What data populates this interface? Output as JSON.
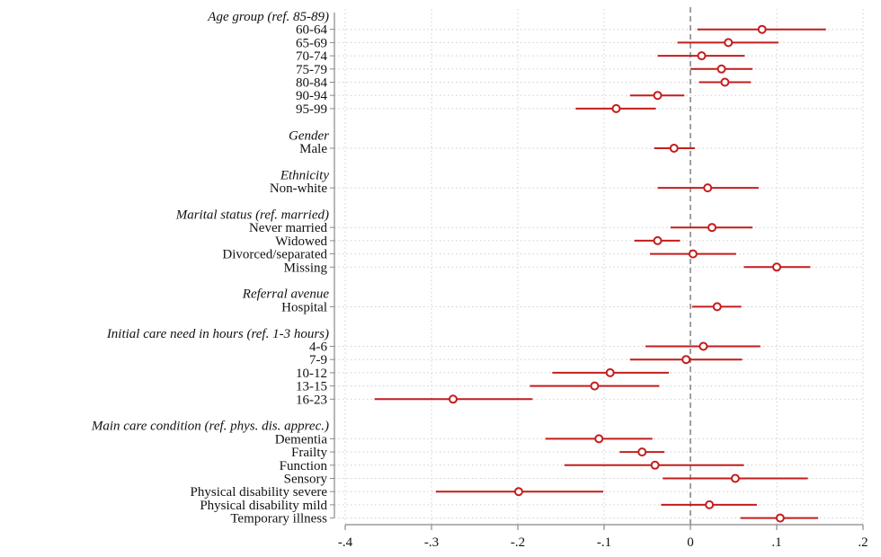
{
  "chart_data": {
    "type": "scatter",
    "subtype": "coefficient-plot",
    "orientation": "horizontal",
    "xlim": [
      -0.4,
      0.2
    ],
    "x_ticks": [
      -0.4,
      -0.3,
      -0.2,
      -0.1,
      0,
      0.1,
      0.2
    ],
    "x_tick_labels": [
      "-.4",
      "-.3",
      "-.2",
      "-.1",
      "0",
      ".1",
      ".2"
    ],
    "reference_line": 0,
    "grid": true,
    "colors": {
      "point": "#c41c1c",
      "ci": "#c41c1c",
      "grid": "#cfcfcf",
      "ref_line": "#777777",
      "axis": "#888888"
    },
    "rows": [
      {
        "kind": "group",
        "label": "Age group (ref. 85-89)"
      },
      {
        "kind": "term",
        "label": "60-64",
        "estimate": 0.083,
        "ci": [
          0.008,
          0.157
        ]
      },
      {
        "kind": "term",
        "label": "65-69",
        "estimate": 0.044,
        "ci": [
          -0.015,
          0.102
        ]
      },
      {
        "kind": "term",
        "label": "70-74",
        "estimate": 0.013,
        "ci": [
          -0.038,
          0.063
        ]
      },
      {
        "kind": "term",
        "label": "75-79",
        "estimate": 0.036,
        "ci": [
          0.0,
          0.072
        ]
      },
      {
        "kind": "term",
        "label": "80-84",
        "estimate": 0.04,
        "ci": [
          0.01,
          0.07
        ]
      },
      {
        "kind": "term",
        "label": "90-94",
        "estimate": -0.038,
        "ci": [
          -0.07,
          -0.007
        ]
      },
      {
        "kind": "term",
        "label": "95-99",
        "estimate": -0.086,
        "ci": [
          -0.133,
          -0.04
        ]
      },
      {
        "kind": "gap"
      },
      {
        "kind": "group",
        "label": "Gender"
      },
      {
        "kind": "term",
        "label": "Male",
        "estimate": -0.019,
        "ci": [
          -0.042,
          0.005
        ]
      },
      {
        "kind": "gap"
      },
      {
        "kind": "group",
        "label": "Ethnicity"
      },
      {
        "kind": "term",
        "label": "Non-white",
        "estimate": 0.02,
        "ci": [
          -0.038,
          0.079
        ]
      },
      {
        "kind": "gap"
      },
      {
        "kind": "group",
        "label": "Marital status (ref. married)"
      },
      {
        "kind": "term",
        "label": "Never married",
        "estimate": 0.025,
        "ci": [
          -0.023,
          0.072
        ]
      },
      {
        "kind": "term",
        "label": "Widowed",
        "estimate": -0.038,
        "ci": [
          -0.065,
          -0.012
        ]
      },
      {
        "kind": "term",
        "label": "Divorced/separated",
        "estimate": 0.003,
        "ci": [
          -0.047,
          0.053
        ]
      },
      {
        "kind": "term",
        "label": "Missing",
        "estimate": 0.1,
        "ci": [
          0.062,
          0.139
        ]
      },
      {
        "kind": "gap"
      },
      {
        "kind": "group",
        "label": "Referral avenue"
      },
      {
        "kind": "term",
        "label": "Hospital",
        "estimate": 0.031,
        "ci": [
          0.002,
          0.059
        ]
      },
      {
        "kind": "gap"
      },
      {
        "kind": "group",
        "label": "Initial care need in hours (ref. 1-3 hours)"
      },
      {
        "kind": "term",
        "label": "4-6",
        "estimate": 0.015,
        "ci": [
          -0.052,
          0.081
        ]
      },
      {
        "kind": "term",
        "label": "7-9",
        "estimate": -0.005,
        "ci": [
          -0.07,
          0.06
        ]
      },
      {
        "kind": "term",
        "label": "10-12",
        "estimate": -0.093,
        "ci": [
          -0.16,
          -0.025
        ]
      },
      {
        "kind": "term",
        "label": "13-15",
        "estimate": -0.111,
        "ci": [
          -0.186,
          -0.036
        ]
      },
      {
        "kind": "term",
        "label": "16-23",
        "estimate": -0.275,
        "ci": [
          -0.366,
          -0.183
        ]
      },
      {
        "kind": "gap"
      },
      {
        "kind": "group",
        "label": "Main care condition (ref. phys. dis. apprec.)"
      },
      {
        "kind": "term",
        "label": "Dementia",
        "estimate": -0.106,
        "ci": [
          -0.168,
          -0.044
        ]
      },
      {
        "kind": "term",
        "label": "Frailty",
        "estimate": -0.056,
        "ci": [
          -0.082,
          -0.03
        ]
      },
      {
        "kind": "term",
        "label": "Function",
        "estimate": -0.041,
        "ci": [
          -0.146,
          0.062
        ]
      },
      {
        "kind": "term",
        "label": "Sensory",
        "estimate": 0.052,
        "ci": [
          -0.032,
          0.136
        ]
      },
      {
        "kind": "term",
        "label": "Physical disability severe",
        "estimate": -0.199,
        "ci": [
          -0.295,
          -0.101
        ]
      },
      {
        "kind": "term",
        "label": "Physical disability mild",
        "estimate": 0.022,
        "ci": [
          -0.034,
          0.077
        ]
      },
      {
        "kind": "term",
        "label": "Temporary illness",
        "estimate": 0.104,
        "ci": [
          0.058,
          0.148
        ]
      }
    ]
  }
}
